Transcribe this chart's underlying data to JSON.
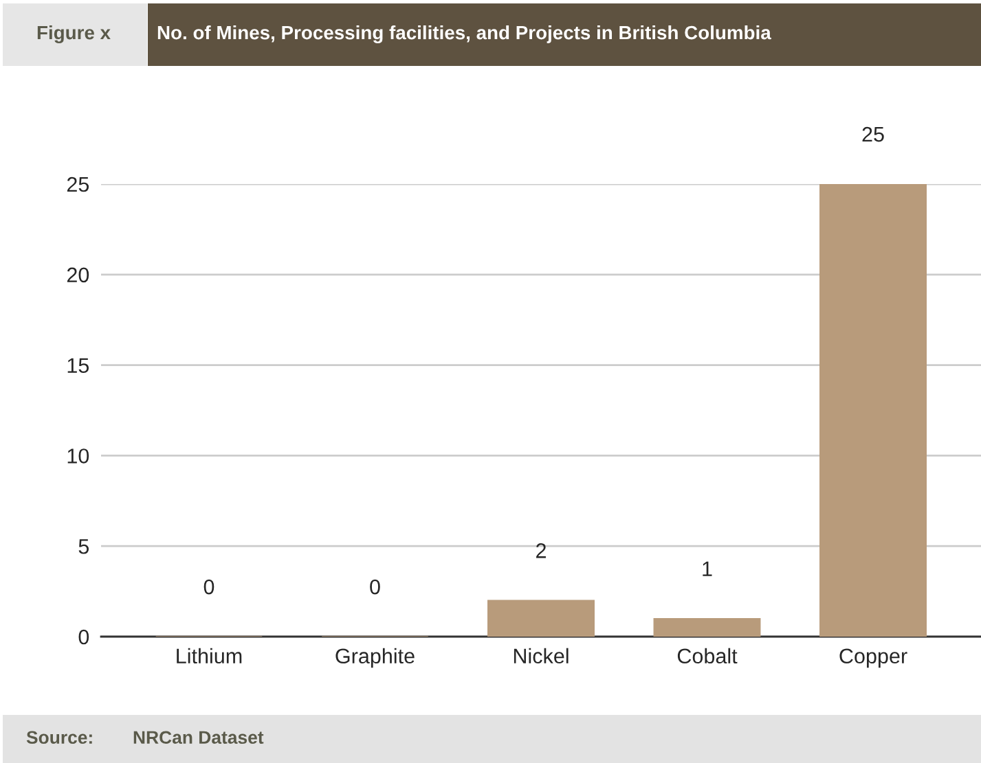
{
  "chart_data": {
    "type": "bar",
    "title": "No. of Mines, Processing facilities, and Projects in British Columbia",
    "categories": [
      "Lithium",
      "Graphite",
      "Nickel",
      "Cobalt",
      "Copper"
    ],
    "values": [
      0,
      0,
      2,
      1,
      25
    ],
    "color": "#b89b7b",
    "ylim": [
      0,
      25
    ],
    "yticks": [
      0,
      5,
      10,
      15,
      20,
      25
    ],
    "grid": "y",
    "data_labels": true,
    "annotations": [
      "Figure x",
      "Source:",
      "NRCan Dataset"
    ]
  }
}
